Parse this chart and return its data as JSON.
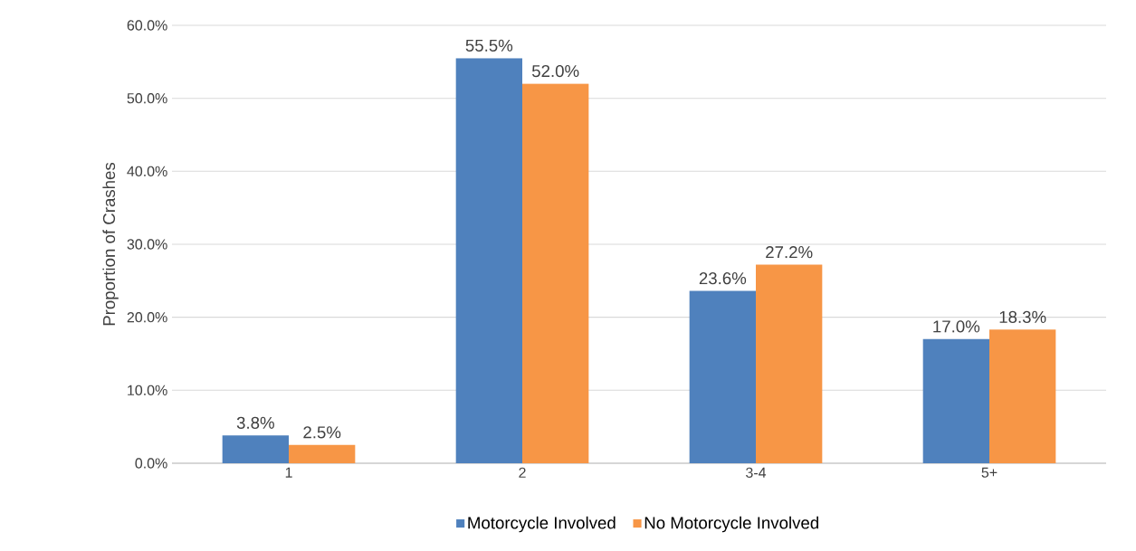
{
  "chart_data": {
    "type": "bar",
    "ylabel": "Proportion of Crashes",
    "categories": [
      "1",
      "2",
      "3-4",
      "5+"
    ],
    "series": [
      {
        "name": "Motorcycle Involved",
        "color": "#4f81bd",
        "values": [
          3.8,
          55.5,
          23.6,
          17.0
        ],
        "value_labels": [
          "3.8%",
          "55.5%",
          "23.6%",
          "17.0%"
        ]
      },
      {
        "name": "No Motorcycle Involved",
        "color": "#f79646",
        "values": [
          2.5,
          52.0,
          27.2,
          18.3
        ],
        "value_labels": [
          "2.5%",
          "52.0%",
          "27.2%",
          "18.3%"
        ]
      }
    ],
    "ylim": [
      0,
      60
    ],
    "yticks": [
      {
        "value": 0,
        "label": "0.0%"
      },
      {
        "value": 10,
        "label": "10.0%"
      },
      {
        "value": 20,
        "label": "20.0%"
      },
      {
        "value": 30,
        "label": "30.0%"
      },
      {
        "value": 40,
        "label": "40.0%"
      },
      {
        "value": 50,
        "label": "50.0%"
      },
      {
        "value": 60,
        "label": "60.0%"
      }
    ],
    "grid": "y",
    "legend": "bottom"
  }
}
